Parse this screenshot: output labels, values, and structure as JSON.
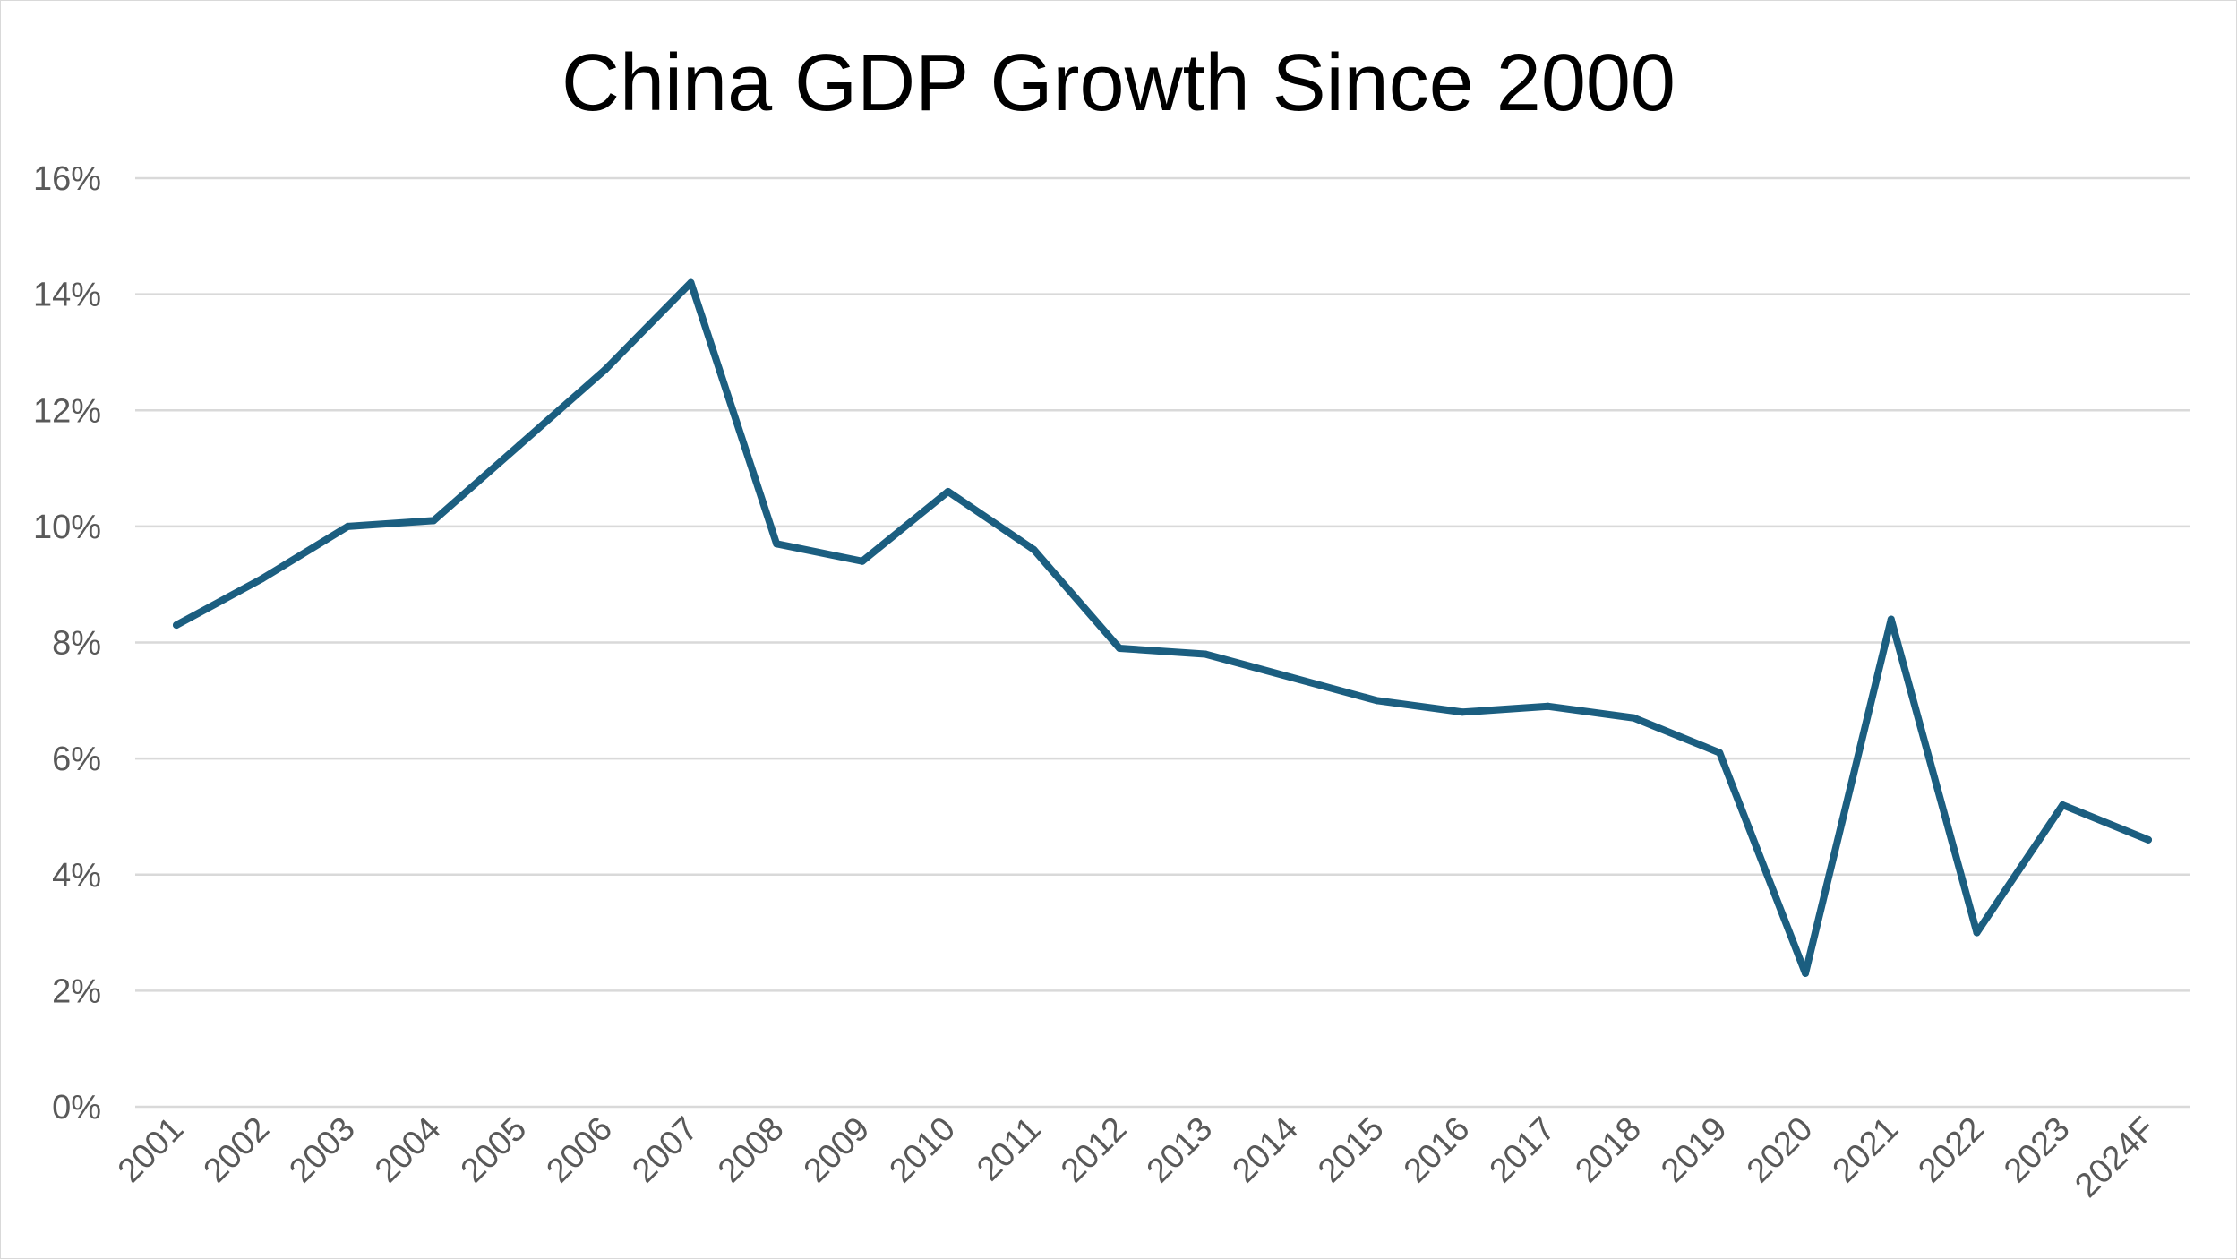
{
  "chart_data": {
    "type": "line",
    "title": "China GDP Growth Since 2000",
    "xlabel": "",
    "ylabel": "",
    "categories": [
      "2001",
      "2002",
      "2003",
      "2004",
      "2005",
      "2006",
      "2007",
      "2008",
      "2009",
      "2010",
      "2011",
      "2012",
      "2013",
      "2014",
      "2015",
      "2016",
      "2017",
      "2018",
      "2019",
      "2020",
      "2021",
      "2022",
      "2023",
      "2024F"
    ],
    "series": [
      {
        "name": "China GDP Growth",
        "values": [
          8.3,
          9.1,
          10.0,
          10.1,
          11.4,
          12.7,
          14.2,
          9.7,
          9.4,
          10.6,
          9.6,
          7.9,
          7.8,
          7.4,
          7.0,
          6.8,
          6.9,
          6.7,
          6.1,
          2.3,
          8.4,
          3.0,
          5.2,
          4.6
        ],
        "color": "#1b5e80"
      }
    ],
    "ylim": [
      0,
      16
    ],
    "yticks": [
      0,
      2,
      4,
      6,
      8,
      10,
      12,
      14,
      16
    ],
    "ytick_labels": [
      "0%",
      "2%",
      "4%",
      "6%",
      "8%",
      "10%",
      "12%",
      "14%",
      "16%"
    ],
    "grid": true,
    "legend": "none"
  }
}
